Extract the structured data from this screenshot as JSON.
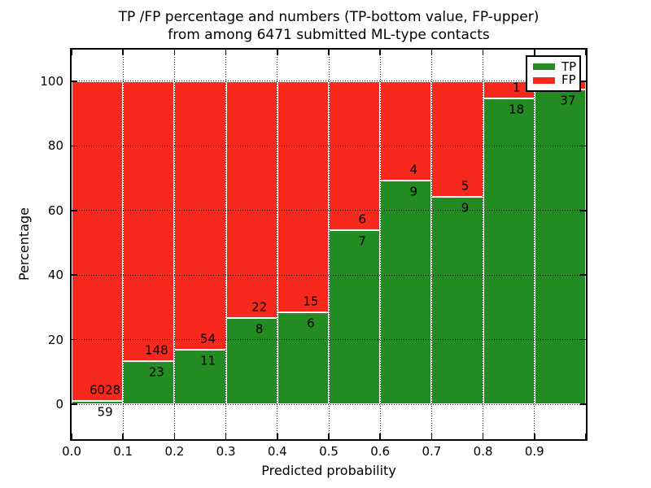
{
  "title": {
    "line1": "TP /FP percentage and numbers (TP-bottom value, FP-upper)",
    "line2": "from among 6471 submitted ML-type contacts"
  },
  "axes": {
    "xlabel": "Predicted probability",
    "ylabel": "Percentage",
    "x_ticks": [
      {
        "label": "0.0",
        "value": 0.0
      },
      {
        "label": "0.1",
        "value": 0.1
      },
      {
        "label": "0.2",
        "value": 0.2
      },
      {
        "label": "0.3",
        "value": 0.3
      },
      {
        "label": "0.4",
        "value": 0.4
      },
      {
        "label": "0.5",
        "value": 0.5
      },
      {
        "label": "0.6",
        "value": 0.6
      },
      {
        "label": "0.7",
        "value": 0.7
      },
      {
        "label": "0.8",
        "value": 0.8
      },
      {
        "label": "0.9",
        "value": 0.9
      }
    ],
    "x_unlabeled_tick_values": [
      1.0
    ],
    "y_ticks": [
      {
        "label": "0",
        "value": 0
      },
      {
        "label": "20",
        "value": 20
      },
      {
        "label": "40",
        "value": 40
      },
      {
        "label": "60",
        "value": 60
      },
      {
        "label": "80",
        "value": 80
      },
      {
        "label": "100",
        "value": 100
      }
    ]
  },
  "legend": {
    "position": "upper right",
    "items": [
      {
        "label": "TP",
        "color": "#228b22"
      },
      {
        "label": "FP",
        "color": "#f8281c"
      }
    ]
  },
  "colors": {
    "tp": "#228b22",
    "fp": "#f8281c",
    "grid": "#000000",
    "bar_edge": "#ffffff",
    "background": "#ffffff"
  },
  "chart_data": {
    "type": "bar",
    "stacked": true,
    "normalized": "each bin scaled to 100%",
    "title": "TP /FP percentage and numbers (TP-bottom value, FP-upper) from among 6471 submitted ML-type contacts",
    "xlabel": "Predicted probability",
    "ylabel": "Percentage",
    "xlim": [
      0,
      1
    ],
    "ylim": [
      -10.8,
      109.8
    ],
    "grid": true,
    "grid_style": "dotted",
    "bin_width": 0.1,
    "categories": [
      "0.0-0.1",
      "0.1-0.2",
      "0.2-0.3",
      "0.3-0.4",
      "0.4-0.5",
      "0.5-0.6",
      "0.6-0.7",
      "0.7-0.8",
      "0.8-0.9",
      "0.9-1.0"
    ],
    "series": [
      {
        "name": "TP",
        "color": "#228b22",
        "counts": [
          59,
          23,
          11,
          8,
          6,
          7,
          9,
          9,
          18,
          37
        ]
      },
      {
        "name": "FP",
        "color": "#f8281c",
        "counts": [
          6028,
          148,
          54,
          22,
          15,
          6,
          4,
          5,
          1,
          1
        ]
      }
    ],
    "tp_percent": [
      0.97,
      13.45,
      16.92,
      26.67,
      28.57,
      53.85,
      69.23,
      64.29,
      94.74,
      97.37
    ],
    "total_contacts": 6471,
    "annotation_note": "TP count printed below each stack boundary, FP count above it"
  }
}
